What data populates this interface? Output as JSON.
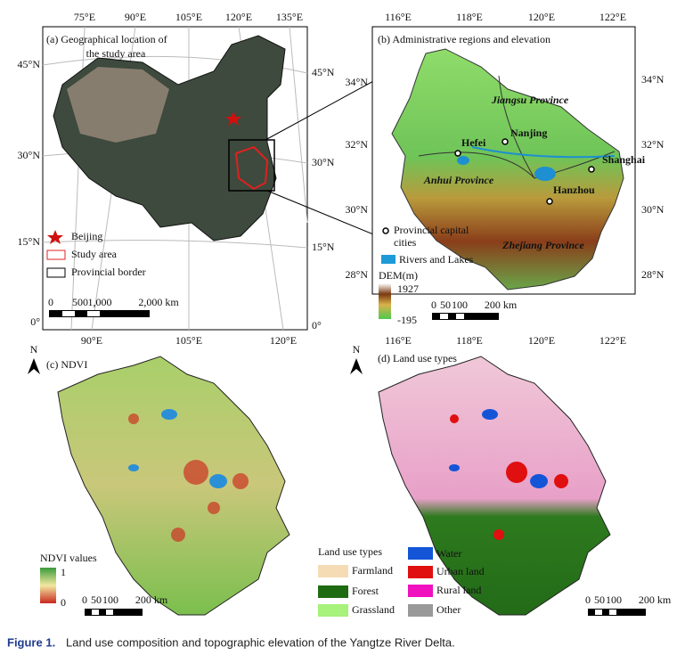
{
  "panel_a": {
    "title_lines": [
      "(a) Geographical location of",
      "the study area"
    ],
    "top_lon": [
      "75°E",
      "90°E",
      "105°E",
      "120°E",
      "135°E"
    ],
    "bottom_lon": [
      "90°E",
      "105°E",
      "120°E"
    ],
    "left_lat": [
      "45°N",
      "30°N",
      "15°N",
      "0°"
    ],
    "right_lat": [
      "45°N",
      "30°N",
      "15°N",
      "0°"
    ],
    "legend": [
      "Beijing",
      "Study area",
      "Provincial border"
    ],
    "scale": [
      "0",
      "500",
      "1,000",
      "2,000 km"
    ]
  },
  "panel_b": {
    "title": "(b) Administrative regions and elevation",
    "top_lon": [
      "116°E",
      "118°E",
      "120°E",
      "122°E"
    ],
    "bottom_lon": [
      "116°E",
      "118°E",
      "120°E",
      "122°E"
    ],
    "left_lat": [
      "34°N",
      "32°N",
      "30°N",
      "28°N"
    ],
    "right_lat": [
      "34°N",
      "32°N",
      "30°N",
      "28°N"
    ],
    "provinces": [
      "Jiangsu Province",
      "Anhui Province",
      "Zhejiang Province"
    ],
    "cities": [
      "Nanjing",
      "Hefei",
      "Shanghai",
      "Hanzhou"
    ],
    "legend_cities_lines": [
      "Provincial capital",
      "cities"
    ],
    "legend_water": "Rivers and Lakes",
    "dem_title": "DEM(m)",
    "dem_max": "1927",
    "dem_min": "-195",
    "scale": [
      "0",
      "50",
      "100",
      "200 km"
    ]
  },
  "panel_c": {
    "north": "N",
    "title": "(c) NDVI",
    "legend_title": "NDVI values",
    "legend_max": "1",
    "legend_min": "0",
    "scale": [
      "0",
      "50",
      "100",
      "200 km"
    ]
  },
  "panel_d": {
    "north": "N",
    "title": "(d) Land use types",
    "legend_title": "Land use types",
    "classes": [
      "Farmland",
      "Forest",
      "Grassland",
      "Water",
      "Urban land",
      "Rural land",
      "Other"
    ],
    "scale": [
      "0",
      "50",
      "100",
      "200 km"
    ]
  },
  "caption": {
    "label": "Figure 1.",
    "text": "Land use composition and topographic elevation of the Yangtze River Delta."
  }
}
